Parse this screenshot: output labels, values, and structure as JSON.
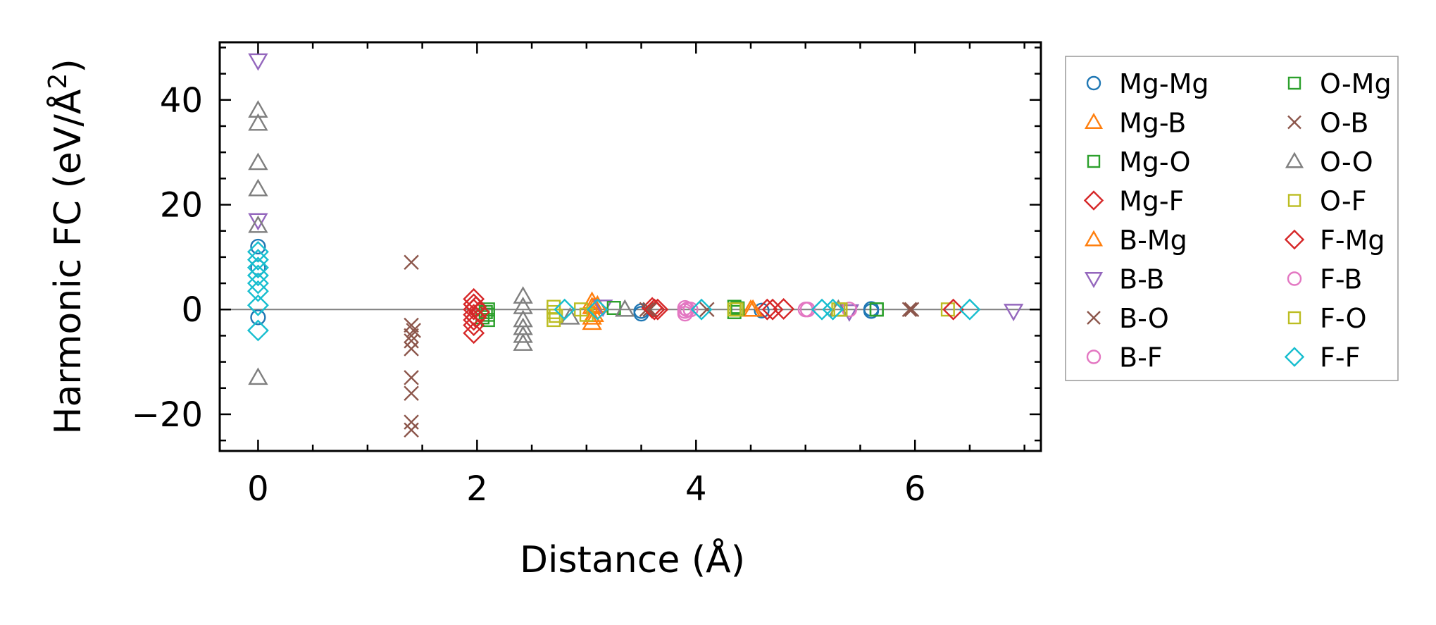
{
  "chart_data": {
    "type": "scatter",
    "xlabel": "Distance (Å)",
    "ylabel_main": "Harmonic FC (eV/Å",
    "ylabel_sup": "2",
    "ylabel_close": ")",
    "xlim": [
      -0.35,
      7.15
    ],
    "ylim": [
      -27,
      51
    ],
    "xticks": [
      0,
      2,
      4,
      6
    ],
    "yticks": [
      -20,
      0,
      20,
      40
    ],
    "xtick_labels": [
      "0",
      "2",
      "4",
      "6"
    ],
    "ytick_labels": [
      "−20",
      "0",
      "20",
      "40"
    ],
    "zero_line": true,
    "legend_position": "outside-right",
    "legend_columns": 2,
    "series": [
      {
        "name": "Mg-Mg",
        "marker": "circle",
        "color": "#1f77b4",
        "points": [
          [
            0,
            12
          ],
          [
            0,
            8
          ],
          [
            0,
            -1.5
          ],
          [
            3.5,
            -0.8
          ],
          [
            3.5,
            -0.3
          ],
          [
            4.6,
            -0.2
          ],
          [
            5.6,
            -0.3
          ],
          [
            5.6,
            0.1
          ]
        ]
      },
      {
        "name": "Mg-B",
        "marker": "triangle-up",
        "color": "#ff7f0e",
        "points": [
          [
            3.05,
            0.5
          ],
          [
            3.05,
            -1.5
          ],
          [
            3.05,
            -2.5
          ],
          [
            3.05,
            1.5
          ],
          [
            3.1,
            0.8
          ],
          [
            4.5,
            0
          ]
        ]
      },
      {
        "name": "Mg-O",
        "marker": "square",
        "color": "#2ca02c",
        "points": [
          [
            2.1,
            -1
          ],
          [
            2.1,
            0
          ],
          [
            2.1,
            -2
          ],
          [
            2.05,
            -1.5
          ],
          [
            4.35,
            0.5
          ],
          [
            4.35,
            -0.5
          ],
          [
            5.65,
            0
          ]
        ]
      },
      {
        "name": "Mg-F",
        "marker": "diamond",
        "color": "#d62728",
        "points": [
          [
            1.97,
            2
          ],
          [
            1.97,
            1
          ],
          [
            1.97,
            0
          ],
          [
            1.97,
            -1
          ],
          [
            1.97,
            -2
          ],
          [
            1.97,
            -3
          ],
          [
            1.97,
            -4.5
          ],
          [
            2.02,
            -0.5
          ],
          [
            3.6,
            0.3
          ],
          [
            3.65,
            0
          ],
          [
            4.65,
            0
          ],
          [
            4.8,
            0.1
          ]
        ]
      },
      {
        "name": "B-Mg",
        "marker": "triangle-up",
        "color": "#ff7f0e",
        "points": [
          [
            3.07,
            0.5
          ],
          [
            3.07,
            -1
          ],
          [
            4.52,
            0
          ]
        ]
      },
      {
        "name": "B-B",
        "marker": "triangle-down",
        "color": "#9467bd",
        "points": [
          [
            0,
            47.5
          ],
          [
            0,
            17
          ],
          [
            3.15,
            0.5
          ],
          [
            5.4,
            -0.4
          ],
          [
            6.9,
            -0.3
          ]
        ]
      },
      {
        "name": "B-O",
        "marker": "x",
        "color": "#8c564b",
        "points": [
          [
            1.4,
            9
          ],
          [
            1.4,
            -3
          ],
          [
            1.4,
            -5
          ],
          [
            1.4,
            -6
          ],
          [
            1.4,
            -7.5
          ],
          [
            1.4,
            -13
          ],
          [
            1.4,
            -16
          ],
          [
            1.4,
            -21.5
          ],
          [
            1.4,
            -23
          ],
          [
            3.55,
            0
          ],
          [
            4.1,
            0
          ],
          [
            5.95,
            0
          ]
        ]
      },
      {
        "name": "B-F",
        "marker": "circle",
        "color": "#e377c2",
        "points": [
          [
            3.9,
            0.3
          ],
          [
            3.9,
            -0.3
          ],
          [
            3.9,
            -0.8
          ],
          [
            3.95,
            0
          ],
          [
            5.0,
            0
          ],
          [
            5.4,
            0
          ]
        ]
      },
      {
        "name": "O-Mg",
        "marker": "square",
        "color": "#2ca02c",
        "points": [
          [
            2.08,
            -0.5
          ],
          [
            3.25,
            0.3
          ],
          [
            4.38,
            0.2
          ],
          [
            5.65,
            0
          ]
        ]
      },
      {
        "name": "O-B",
        "marker": "x",
        "color": "#8c564b",
        "points": [
          [
            1.42,
            -4
          ],
          [
            3.58,
            0
          ],
          [
            5.97,
            0
          ]
        ]
      },
      {
        "name": "O-O",
        "marker": "triangle-up",
        "color": "#7f7f7f",
        "points": [
          [
            0,
            38
          ],
          [
            0,
            35.5
          ],
          [
            0,
            28
          ],
          [
            0,
            23
          ],
          [
            0,
            16
          ],
          [
            0,
            -13
          ],
          [
            2.42,
            2.5
          ],
          [
            2.42,
            0.5
          ],
          [
            2.42,
            -2
          ],
          [
            2.42,
            -3.5
          ],
          [
            2.42,
            -5
          ],
          [
            2.42,
            -6.5
          ],
          [
            2.85,
            -1.5
          ],
          [
            3.35,
            0
          ],
          [
            5.3,
            0
          ]
        ]
      },
      {
        "name": "O-F",
        "marker": "square",
        "color": "#bcbd22",
        "points": [
          [
            2.7,
            -2
          ],
          [
            2.7,
            0.5
          ],
          [
            2.7,
            -0.5
          ],
          [
            2.95,
            0
          ],
          [
            3.0,
            -1
          ],
          [
            4.35,
            0
          ],
          [
            5.3,
            0
          ],
          [
            6.3,
            0
          ]
        ]
      },
      {
        "name": "F-Mg",
        "marker": "diamond",
        "color": "#d62728",
        "points": [
          [
            1.99,
            0.5
          ],
          [
            1.99,
            -1.5
          ],
          [
            3.62,
            0
          ],
          [
            4.7,
            0
          ],
          [
            6.35,
            0
          ]
        ]
      },
      {
        "name": "F-B",
        "marker": "circle",
        "color": "#e377c2",
        "points": [
          [
            3.92,
            0
          ],
          [
            5.02,
            0
          ]
        ]
      },
      {
        "name": "F-O",
        "marker": "square",
        "color": "#bcbd22",
        "points": [
          [
            2.72,
            -1.2
          ],
          [
            4.37,
            0
          ],
          [
            5.32,
            0
          ]
        ]
      },
      {
        "name": "F-F",
        "marker": "diamond",
        "color": "#17becf",
        "points": [
          [
            0,
            11
          ],
          [
            0,
            9.5
          ],
          [
            0,
            8
          ],
          [
            0,
            6.5
          ],
          [
            0,
            5
          ],
          [
            0,
            3.5
          ],
          [
            0,
            0.8
          ],
          [
            0,
            -4
          ],
          [
            2.8,
            0
          ],
          [
            3.1,
            0
          ],
          [
            4.05,
            0
          ],
          [
            5.15,
            0
          ],
          [
            5.25,
            0
          ],
          [
            6.5,
            0
          ]
        ]
      }
    ]
  }
}
